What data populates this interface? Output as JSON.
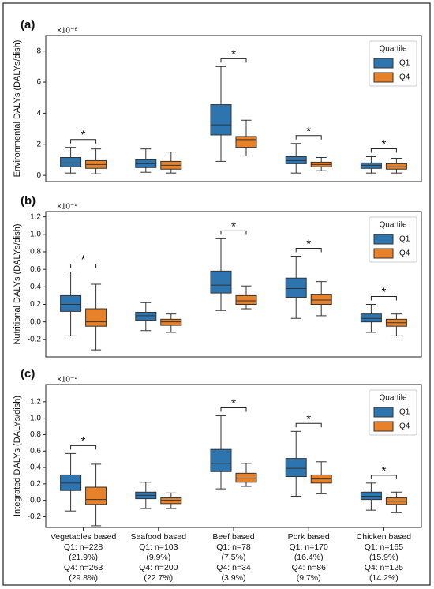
{
  "chart_data": [
    {
      "type": "box",
      "panel": "(a)",
      "multiplier": "×10⁻⁶",
      "ylabel": "Environmental DALYs (DALYs/dish)",
      "ylim": [
        -0.4,
        9.0
      ],
      "yticks": [
        0,
        2,
        4,
        6,
        8
      ],
      "legend": {
        "title": "Quartile",
        "loc": "upper right"
      },
      "significance": [
        "*",
        null,
        "*",
        "*",
        "*"
      ],
      "series": [
        {
          "name": "Q1",
          "color": "#2e75b0",
          "boxes": [
            {
              "whislo": 0.15,
              "q1": 0.55,
              "med": 0.8,
              "q3": 1.15,
              "whishi": 1.8
            },
            {
              "whislo": 0.2,
              "q1": 0.5,
              "med": 0.75,
              "q3": 1.0,
              "whishi": 1.7
            },
            {
              "whislo": 0.9,
              "q1": 2.6,
              "med": 3.25,
              "q3": 4.55,
              "whishi": 7.0
            },
            {
              "whislo": 0.15,
              "q1": 0.75,
              "med": 0.95,
              "q3": 1.2,
              "whishi": 2.05
            },
            {
              "whislo": 0.15,
              "q1": 0.45,
              "med": 0.65,
              "q3": 0.8,
              "whishi": 1.2
            }
          ]
        },
        {
          "name": "Q4",
          "color": "#e8822a",
          "boxes": [
            {
              "whislo": 0.1,
              "q1": 0.45,
              "med": 0.7,
              "q3": 0.95,
              "whishi": 1.7
            },
            {
              "whislo": 0.15,
              "q1": 0.4,
              "med": 0.65,
              "q3": 0.9,
              "whishi": 1.5
            },
            {
              "whislo": 1.25,
              "q1": 1.8,
              "med": 2.3,
              "q3": 2.5,
              "whishi": 3.55
            },
            {
              "whislo": 0.3,
              "q1": 0.55,
              "med": 0.7,
              "q3": 0.85,
              "whishi": 1.15
            },
            {
              "whislo": 0.15,
              "q1": 0.4,
              "med": 0.55,
              "q3": 0.75,
              "whishi": 1.1
            }
          ]
        }
      ]
    },
    {
      "type": "box",
      "panel": "(b)",
      "multiplier": "×10⁻⁴",
      "ylabel": "Nutritional DALYs (DALYs/dish)",
      "ylim": [
        -0.4,
        1.26
      ],
      "yticks": [
        -0.2,
        {
          "value": 0,
          "label": "0.0"
        },
        0.2,
        0.4,
        0.6,
        0.8,
        {
          "value": 1,
          "label": "1.0"
        },
        1.2
      ],
      "legend": {
        "title": "Quartile",
        "loc": "upper right"
      },
      "significance": [
        "*",
        null,
        "*",
        "*",
        "*"
      ],
      "series": [
        {
          "name": "Q1",
          "color": "#2e75b0",
          "boxes": [
            {
              "whislo": -0.16,
              "q1": 0.12,
              "med": 0.2,
              "q3": 0.3,
              "whishi": 0.57
            },
            {
              "whislo": -0.1,
              "q1": 0.02,
              "med": 0.07,
              "q3": 0.11,
              "whishi": 0.22
            },
            {
              "whislo": 0.13,
              "q1": 0.33,
              "med": 0.42,
              "q3": 0.58,
              "whishi": 0.95
            },
            {
              "whislo": 0.04,
              "q1": 0.28,
              "med": 0.38,
              "q3": 0.5,
              "whishi": 0.75
            },
            {
              "whislo": -0.12,
              "q1": 0.0,
              "med": 0.04,
              "q3": 0.09,
              "whishi": 0.2
            }
          ]
        },
        {
          "name": "Q4",
          "color": "#e8822a",
          "boxes": [
            {
              "whislo": -0.32,
              "q1": -0.05,
              "med": 0.0,
              "q3": 0.15,
              "whishi": 0.43
            },
            {
              "whislo": -0.12,
              "q1": -0.04,
              "med": 0.0,
              "q3": 0.03,
              "whishi": 0.09
            },
            {
              "whislo": 0.15,
              "q1": 0.2,
              "med": 0.24,
              "q3": 0.3,
              "whishi": 0.41
            },
            {
              "whislo": 0.07,
              "q1": 0.2,
              "med": 0.25,
              "q3": 0.31,
              "whishi": 0.46
            },
            {
              "whislo": -0.16,
              "q1": -0.05,
              "med": -0.01,
              "q3": 0.03,
              "whishi": 0.09
            }
          ]
        }
      ]
    },
    {
      "type": "box",
      "panel": "(c)",
      "multiplier": "×10⁻⁴",
      "ylabel": "Integrated DALYs (DALYs/dish)",
      "ylim": [
        -0.33,
        1.41
      ],
      "yticks": [
        -0.2,
        {
          "value": 0,
          "label": "0.0"
        },
        0.2,
        0.4,
        0.6,
        0.8,
        {
          "value": 1,
          "label": "1.0"
        },
        1.2
      ],
      "legend": {
        "title": "Quartile",
        "loc": "upper right"
      },
      "significance": [
        "*",
        null,
        "*",
        "*",
        "*"
      ],
      "categories": [
        "Vegetables based",
        "Seafood based",
        "Beef based",
        "Pork based",
        "Chicken based"
      ],
      "category_notes": [
        [
          "Q1: n=228",
          "(21.9%)",
          "Q4: n=263",
          "(29.8%)"
        ],
        [
          "Q1: n=103",
          "(9.9%)",
          "Q4: n=200",
          "(22.7%)"
        ],
        [
          "Q1: n=78",
          "(7.5%)",
          "Q4: n=34",
          "(3.9%)"
        ],
        [
          "Q1: n=170",
          "(16.4%)",
          "Q4: n=86",
          "(9.7%)"
        ],
        [
          "Q1: n=165",
          "(15.9%)",
          "Q4: n=125",
          "(14.2%)"
        ]
      ],
      "series": [
        {
          "name": "Q1",
          "color": "#2e75b0",
          "boxes": [
            {
              "whislo": -0.13,
              "q1": 0.12,
              "med": 0.21,
              "q3": 0.31,
              "whishi": 0.57
            },
            {
              "whislo": -0.1,
              "q1": 0.02,
              "med": 0.06,
              "q3": 0.1,
              "whishi": 0.22
            },
            {
              "whislo": 0.14,
              "q1": 0.35,
              "med": 0.45,
              "q3": 0.62,
              "whishi": 1.03
            },
            {
              "whislo": 0.05,
              "q1": 0.29,
              "med": 0.39,
              "q3": 0.51,
              "whishi": 0.84
            },
            {
              "whislo": -0.12,
              "q1": 0.01,
              "med": 0.05,
              "q3": 0.1,
              "whishi": 0.21
            }
          ]
        },
        {
          "name": "Q4",
          "color": "#e8822a",
          "boxes": [
            {
              "whislo": -0.31,
              "q1": -0.05,
              "med": 0.01,
              "q3": 0.16,
              "whishi": 0.44
            },
            {
              "whislo": -0.1,
              "q1": -0.04,
              "med": 0.0,
              "q3": 0.03,
              "whishi": 0.09
            },
            {
              "whislo": 0.17,
              "q1": 0.22,
              "med": 0.27,
              "q3": 0.33,
              "whishi": 0.45
            },
            {
              "whislo": 0.08,
              "q1": 0.21,
              "med": 0.26,
              "q3": 0.31,
              "whishi": 0.47
            },
            {
              "whislo": -0.15,
              "q1": -0.05,
              "med": -0.01,
              "q3": 0.03,
              "whishi": 0.1
            }
          ]
        }
      ]
    }
  ]
}
